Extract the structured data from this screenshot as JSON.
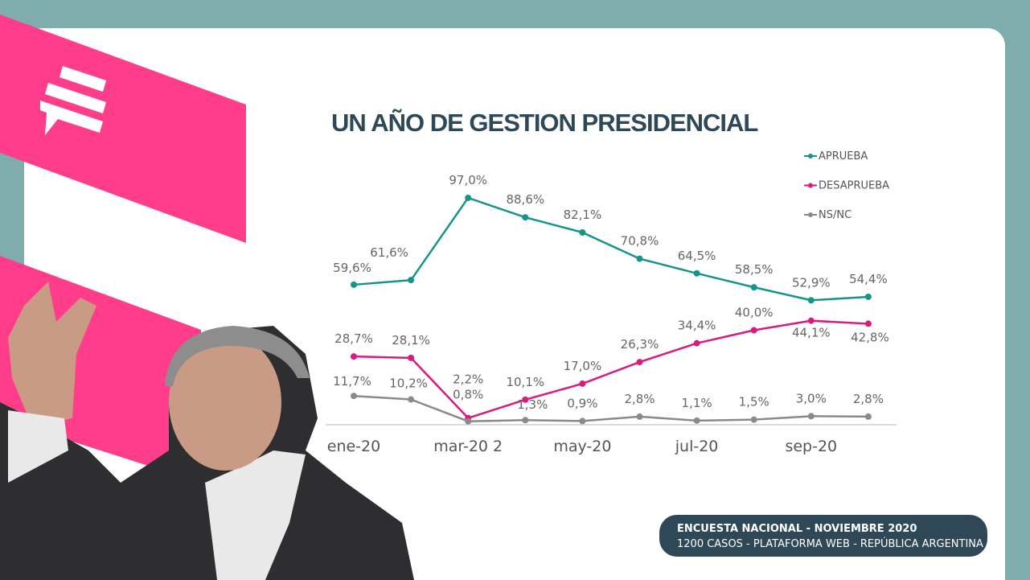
{
  "chart_data": {
    "type": "line",
    "title": "UN AÑO DE GESTION PRESIDENCIAL",
    "categories": [
      "ene-20",
      null,
      "mar-20 2",
      null,
      "may-20",
      null,
      "jul-20",
      null,
      "sep-20",
      null
    ],
    "series": [
      {
        "name": "APRUEBA",
        "color": "#17948a",
        "values": [
          59.6,
          61.6,
          97.0,
          88.6,
          82.1,
          70.8,
          64.5,
          58.5,
          52.9,
          54.4
        ],
        "value_labels": [
          "59,6%",
          "61,6%",
          "97,0%",
          "88,6%",
          "82,1%",
          "70,8%",
          "64,5%",
          "58,5%",
          "52,9%",
          "54,4%"
        ]
      },
      {
        "name": "DESAPRUEBA",
        "color": "#d81b7f",
        "values": [
          28.7,
          28.1,
          2.2,
          10.1,
          17.0,
          26.3,
          34.4,
          40.0,
          44.1,
          42.8
        ],
        "value_labels": [
          "28,7%",
          "28,1%",
          "2,2%",
          "10,1%",
          "17,0%",
          "26,3%",
          "34,4%",
          "40,0%",
          "44,1%",
          "42,8%"
        ]
      },
      {
        "name": "NS/NC",
        "color": "#8a8a8a",
        "values": [
          11.7,
          10.2,
          0.8,
          1.3,
          0.9,
          2.8,
          1.1,
          1.5,
          3.0,
          2.8
        ],
        "value_labels": [
          "11,7%",
          "10,2%",
          "0,8%",
          "1,3%",
          "0,9%",
          "2,8%",
          "1,1%",
          "1,5%",
          "3,0%",
          "2,8%"
        ]
      }
    ],
    "legend": "top-right"
  },
  "footer": {
    "line1": "ENCUESTA NACIONAL -  NOVIEMBRE 2020",
    "line2": "1200 CASOS - PLATAFORMA WEB  - REPÚBLICA ARGENTINA"
  }
}
